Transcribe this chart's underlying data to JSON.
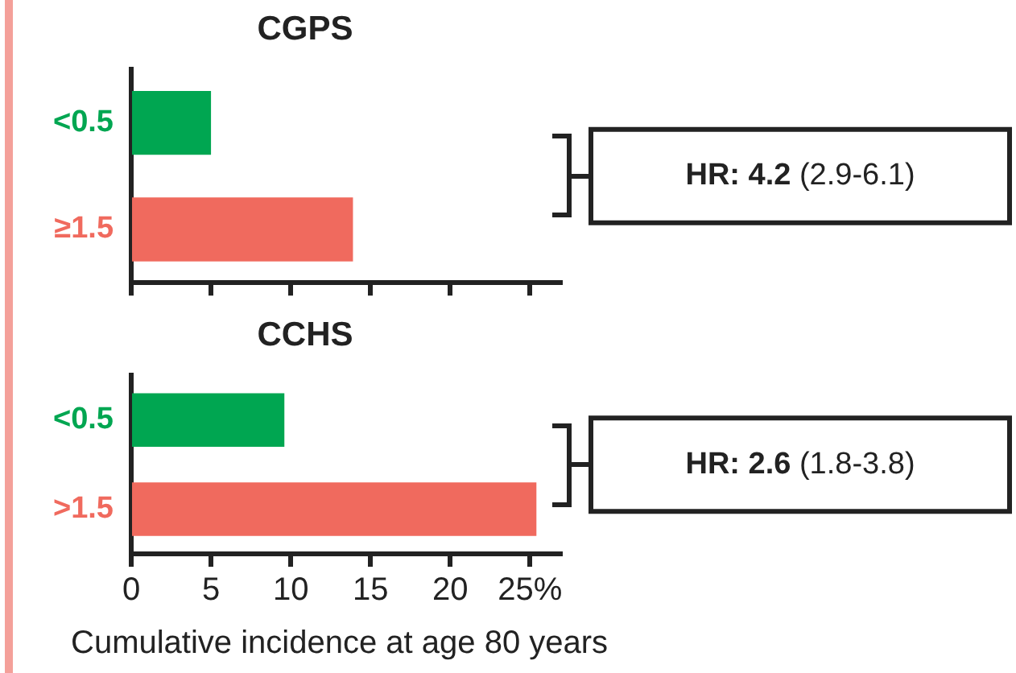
{
  "chart_data": [
    {
      "type": "bar",
      "orientation": "horizontal",
      "title": "CGPS",
      "categories": [
        "<0.5",
        "≥1.5"
      ],
      "values": [
        5.0,
        13.9
      ],
      "colors": [
        "#00a651",
        "#f06a5e"
      ],
      "xlim": [
        0,
        27
      ],
      "xticks": [
        0,
        5,
        10,
        15,
        20,
        25
      ],
      "tick_labels": "y",
      "grid": false,
      "legend": false,
      "annotations": [
        "HR: 4.2 (2.9-6.1)"
      ]
    },
    {
      "type": "bar",
      "orientation": "horizontal",
      "title": "CCHS",
      "categories": [
        "<0.5",
        ">1.5"
      ],
      "values": [
        9.6,
        25.4
      ],
      "colors": [
        "#00a651",
        "#f06a5e"
      ],
      "xlim": [
        0,
        27
      ],
      "xticks": [
        0,
        5,
        10,
        15,
        20,
        {
          "value": 25,
          "label": "25%"
        }
      ],
      "xlabel": "Cumulative incidence at age 80 years",
      "grid": false,
      "legend": false,
      "annotations": [
        "HR: 2.6 (1.8-3.8)"
      ]
    }
  ]
}
